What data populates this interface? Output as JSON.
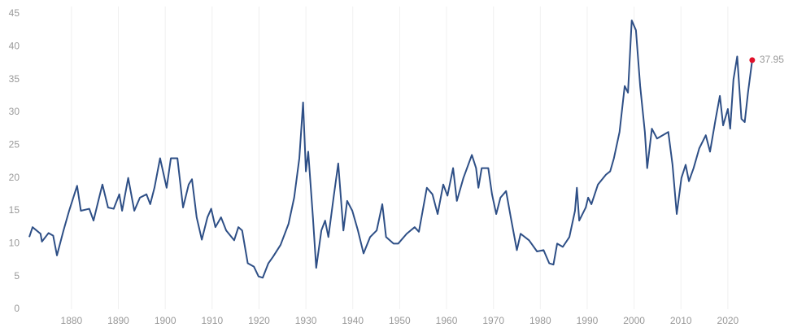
{
  "chart_data": {
    "type": "line",
    "x": [
      1871,
      1871.7,
      1873.4,
      1873.7,
      1875.1,
      1876.1,
      1876.9,
      1878.3,
      1879.5,
      1881.2,
      1882,
      1883.8,
      1884.7,
      1885.9,
      1886.6,
      1887.8,
      1889,
      1890.2,
      1890.8,
      1892.1,
      1893.4,
      1894.6,
      1896,
      1896.8,
      1897.7,
      1898.9,
      1900.3,
      1901.2,
      1902.6,
      1903.8,
      1905,
      1905.7,
      1906.7,
      1907.8,
      1909,
      1909.8,
      1910.7,
      1911.9,
      1913,
      1914.7,
      1915.6,
      1916.4,
      1917.6,
      1918.9,
      1919.9,
      1920.8,
      1922,
      1923,
      1924.6,
      1926.3,
      1927.5,
      1928.6,
      1929.4,
      1930,
      1930.5,
      1931.5,
      1932.2,
      1933.3,
      1934.1,
      1934.8,
      1935.9,
      1936.9,
      1938,
      1938.8,
      1939.9,
      1941.1,
      1942.3,
      1943.7,
      1945.1,
      1946.3,
      1947.1,
      1948.7,
      1949.7,
      1951.5,
      1953.2,
      1954.1,
      1955.8,
      1957,
      1958.1,
      1959.3,
      1960.2,
      1961.4,
      1962.2,
      1963.6,
      1965.4,
      1966.3,
      1966.8,
      1967.5,
      1968.9,
      1969.7,
      1970.6,
      1971.5,
      1972.7,
      1973.7,
      1975,
      1975.8,
      1977.6,
      1979.3,
      1980.7,
      1981.9,
      1982.8,
      1983.6,
      1984.8,
      1986.2,
      1987.4,
      1987.8,
      1988.3,
      1989.7,
      1990.2,
      1990.9,
      1992.3,
      1994,
      1994.9,
      1995.7,
      1996.9,
      1998,
      1998.7,
      1999.5,
      2000.4,
      2001.3,
      2002.3,
      2002.8,
      2003.8,
      2004.9,
      2006.1,
      2007.3,
      2008.2,
      2009.1,
      2010.1,
      2011,
      2011.7,
      2012.7,
      2013.9,
      2015.3,
      2016.2,
      2017.4,
      2018.3,
      2019,
      2020,
      2020.5,
      2021.2,
      2022,
      2022.9,
      2023.6,
      2024.3,
      2025.2
    ],
    "series": [
      {
        "color": "#2e4f86",
        "highlight_color": "#e0102a",
        "values": [
          11,
          12.5,
          11.5,
          10.3,
          11.6,
          11.2,
          8.2,
          12,
          15,
          18.8,
          15,
          15.3,
          13.5,
          17,
          19,
          15.5,
          15.3,
          17.5,
          15,
          20,
          15,
          17,
          17.5,
          16,
          18.5,
          23,
          18.5,
          23,
          23,
          15.5,
          19,
          19.8,
          14,
          10.6,
          14,
          15.3,
          12.5,
          14,
          12,
          10.5,
          12.5,
          12,
          7,
          6.5,
          5,
          4.8,
          7,
          8,
          9.8,
          13,
          17,
          23,
          31.5,
          21,
          24,
          14,
          6.3,
          12,
          13.5,
          11,
          17,
          22.2,
          12,
          16.5,
          15,
          12,
          8.5,
          11,
          12,
          16,
          11,
          10,
          10,
          11.5,
          12.5,
          11.8,
          18.5,
          17.5,
          14.5,
          19,
          17.3,
          21.5,
          16.5,
          20,
          23.5,
          21.5,
          18.5,
          21.5,
          21.5,
          17.5,
          14.5,
          17,
          18,
          14,
          9,
          11.5,
          10.5,
          8.8,
          9,
          7,
          6.8,
          10,
          9.5,
          11,
          15,
          18.5,
          13.5,
          15.5,
          17,
          16,
          19,
          20.5,
          21,
          23,
          27,
          34,
          33,
          44,
          42.5,
          34,
          27,
          21.5,
          27.5,
          26,
          26.5,
          27,
          22,
          14.5,
          20,
          22,
          19.5,
          21.5,
          24.5,
          26.5,
          24,
          29,
          32.5,
          28,
          30.5,
          27.5,
          35,
          38.5,
          29,
          28.5,
          33,
          37.95
        ]
      }
    ],
    "xlim": [
      1871,
      2028
    ],
    "ylim": [
      0,
      45
    ],
    "xticks": [
      1880,
      1890,
      1900,
      1910,
      1920,
      1930,
      1940,
      1950,
      1960,
      1970,
      1980,
      1990,
      2000,
      2010,
      2020
    ],
    "yticks": [
      0,
      5,
      10,
      15,
      20,
      25,
      30,
      35,
      40,
      45
    ],
    "grid": true
  }
}
